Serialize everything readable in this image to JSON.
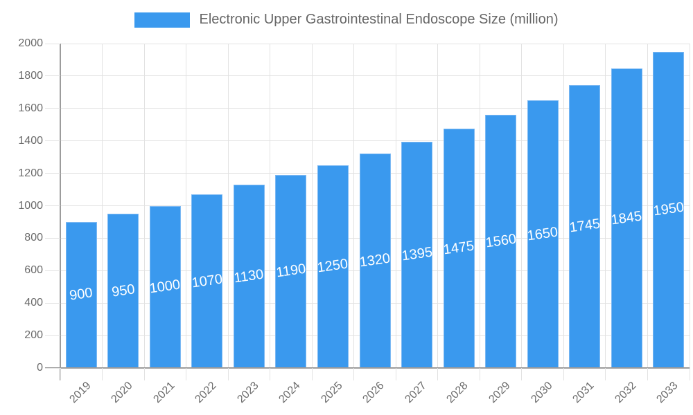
{
  "legend": {
    "label": "Electronic Upper Gastrointestinal Endoscope Size (million)"
  },
  "chart_data": {
    "type": "bar",
    "title": "Electronic Upper Gastrointestinal Endoscope Size (million)",
    "categories": [
      "2019",
      "2020",
      "2021",
      "2022",
      "2023",
      "2024",
      "2025",
      "2026",
      "2027",
      "2028",
      "2029",
      "2030",
      "2031",
      "2032",
      "2033"
    ],
    "series": [
      {
        "name": "Electronic Upper Gastrointestinal Endoscope Size (million)",
        "values": [
          900,
          950,
          1000,
          1070,
          1130,
          1190,
          1250,
          1320,
          1395,
          1475,
          1560,
          1650,
          1745,
          1845,
          1950
        ]
      }
    ],
    "xlabel": "",
    "ylabel": "",
    "ylim": [
      0,
      2000
    ],
    "ytick_step": 200,
    "grid": true,
    "legend_position": "top",
    "bar_color": "#3a99ee",
    "bar_border_color": "#7db9f3",
    "value_label_color": "#ffffff",
    "axis_text_color": "#6b6b6b",
    "gridline_color": "#e2e2e2",
    "axis_line_color": "#9c9c9c"
  }
}
